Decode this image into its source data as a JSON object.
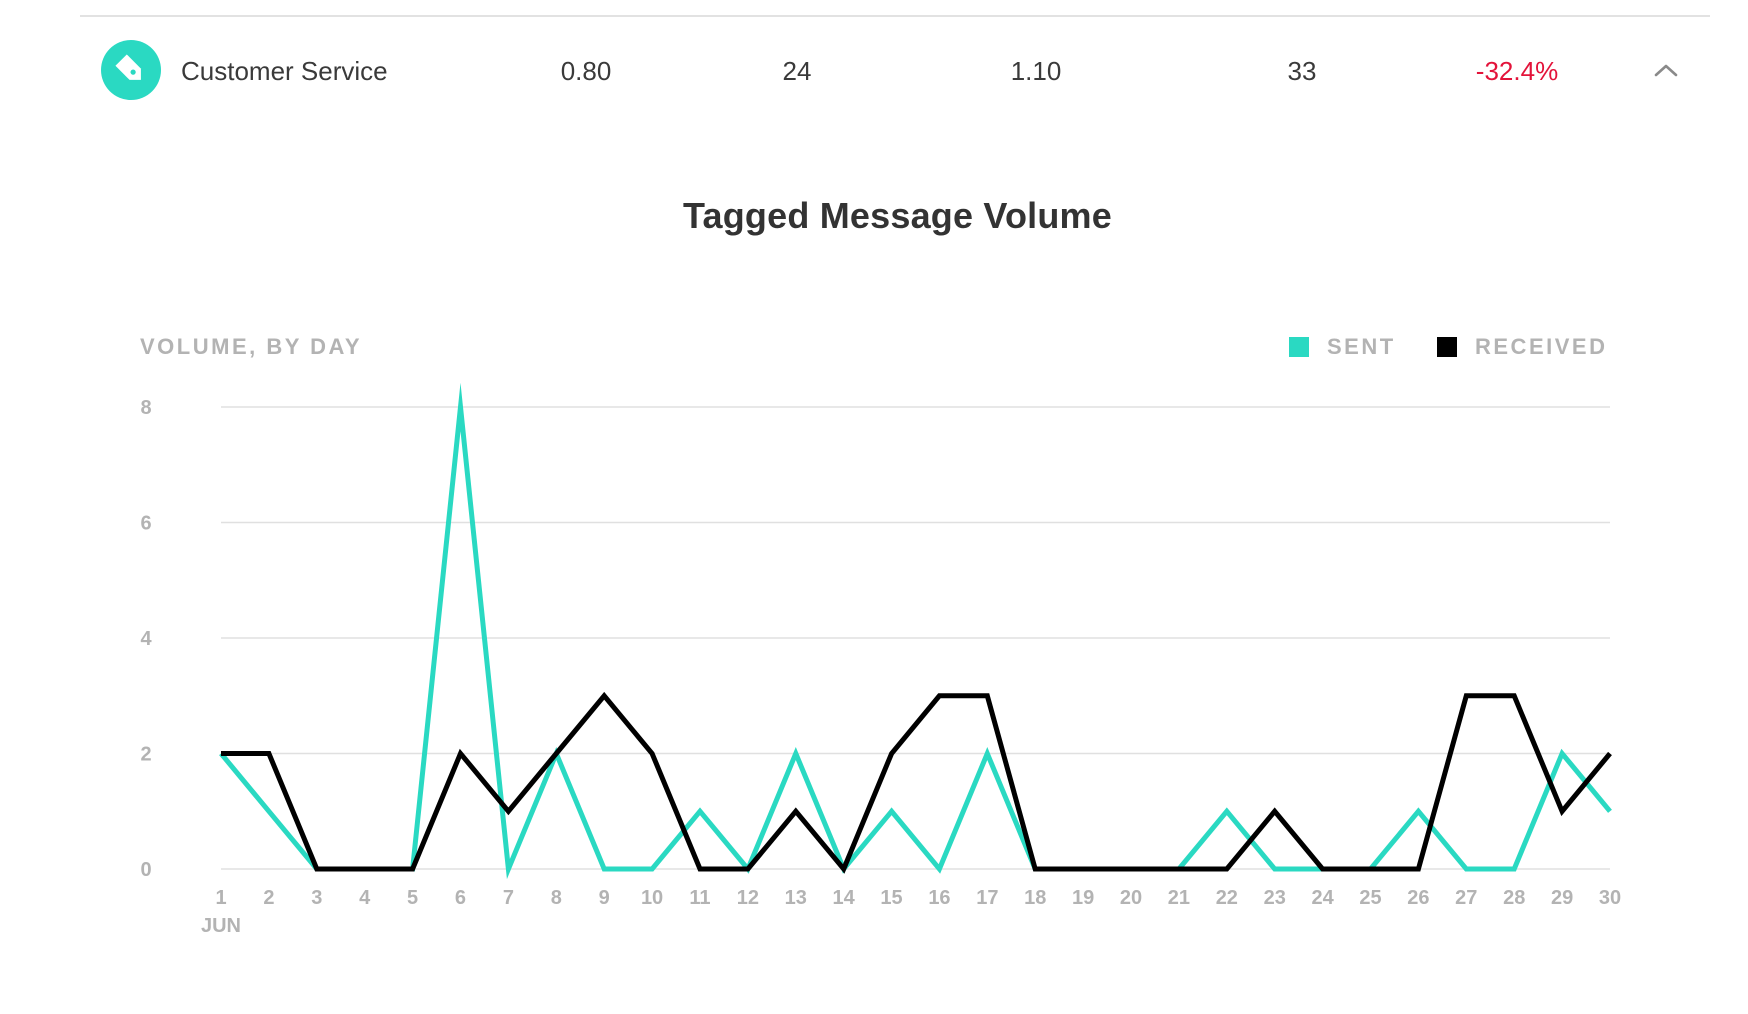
{
  "tag_row": {
    "icon": "tag-icon",
    "name": "Customer Service",
    "values": [
      "0.80",
      "24",
      "1.10",
      "33"
    ],
    "change": "-32.4%",
    "change_color": "#e3133a",
    "collapse_icon": "chevron-up-icon",
    "icon_color": "#2ad9c2"
  },
  "chart_data": {
    "type": "line",
    "title": "Tagged Message Volume",
    "ylabel": "VOLUME, BY DAY",
    "xlabel": "",
    "x": [
      1,
      2,
      3,
      4,
      5,
      6,
      7,
      8,
      9,
      10,
      11,
      12,
      13,
      14,
      15,
      16,
      17,
      18,
      19,
      20,
      21,
      22,
      23,
      24,
      25,
      26,
      27,
      28,
      29,
      30
    ],
    "x_sub_label": "JUN",
    "ylim": [
      0,
      8
    ],
    "yticks": [
      0,
      2,
      4,
      6,
      8
    ],
    "grid": true,
    "legend_position": "top-right",
    "series": [
      {
        "name": "SENT",
        "color": "#2ad9c2",
        "values": [
          2,
          1,
          0,
          0,
          0,
          8,
          0,
          2,
          0,
          0,
          1,
          0,
          2,
          0,
          1,
          0,
          2,
          0,
          0,
          0,
          0,
          1,
          0,
          0,
          0,
          1,
          0,
          0,
          2,
          1
        ]
      },
      {
        "name": "RECEIVED",
        "color": "#000000",
        "values": [
          2,
          2,
          0,
          0,
          0,
          2,
          1,
          2,
          3,
          2,
          0,
          0,
          1,
          0,
          2,
          3,
          3,
          0,
          0,
          0,
          0,
          0,
          1,
          0,
          0,
          0,
          3,
          3,
          1,
          2
        ]
      }
    ]
  }
}
